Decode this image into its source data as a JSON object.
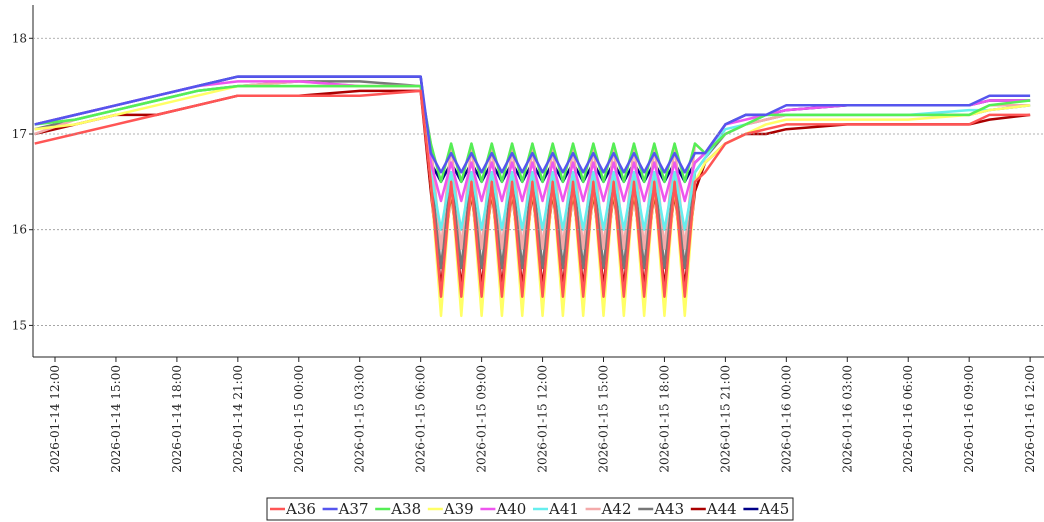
{
  "chart_data": {
    "type": "line",
    "x": [
      "2026-01-14 11:00",
      "2026-01-14 13:00",
      "2026-01-14 15:00",
      "2026-01-14 17:00",
      "2026-01-14 19:00",
      "2026-01-14 21:00",
      "2026-01-15 00:00",
      "2026-01-15 03:00",
      "2026-01-15 06:00",
      "2026-01-15 06:30",
      "2026-01-15 07:00",
      "2026-01-15 07:30",
      "2026-01-15 08:00",
      "2026-01-15 08:30",
      "2026-01-15 09:00",
      "2026-01-15 09:30",
      "2026-01-15 10:00",
      "2026-01-15 10:30",
      "2026-01-15 11:00",
      "2026-01-15 11:30",
      "2026-01-15 12:00",
      "2026-01-15 12:30",
      "2026-01-15 13:00",
      "2026-01-15 13:30",
      "2026-01-15 14:00",
      "2026-01-15 14:30",
      "2026-01-15 15:00",
      "2026-01-15 15:30",
      "2026-01-15 16:00",
      "2026-01-15 16:30",
      "2026-01-15 17:00",
      "2026-01-15 17:30",
      "2026-01-15 18:00",
      "2026-01-15 18:30",
      "2026-01-15 19:00",
      "2026-01-15 19:30",
      "2026-01-15 20:00",
      "2026-01-15 21:00",
      "2026-01-15 22:00",
      "2026-01-15 23:00",
      "2026-01-16 00:00",
      "2026-01-16 03:00",
      "2026-01-16 06:00",
      "2026-01-16 09:00",
      "2026-01-16 10:00",
      "2026-01-16 12:00"
    ],
    "series": [
      {
        "name": "A36",
        "color": "#ff5555",
        "values": [
          16.9,
          17.0,
          17.1,
          17.2,
          17.3,
          17.4,
          17.4,
          17.4,
          17.45,
          16.5,
          15.3,
          16.5,
          15.3,
          16.5,
          15.3,
          16.5,
          15.3,
          16.5,
          15.3,
          16.5,
          15.3,
          16.5,
          15.3,
          16.5,
          15.3,
          16.5,
          15.3,
          16.5,
          15.3,
          16.5,
          15.3,
          16.5,
          15.3,
          16.5,
          15.3,
          16.5,
          16.6,
          16.9,
          17.0,
          17.05,
          17.1,
          17.1,
          17.1,
          17.1,
          17.2,
          17.2
        ]
      },
      {
        "name": "A37",
        "color": "#5555ee",
        "values": [
          17.1,
          17.2,
          17.3,
          17.4,
          17.5,
          17.6,
          17.6,
          17.6,
          17.6,
          16.8,
          16.6,
          16.8,
          16.6,
          16.8,
          16.6,
          16.8,
          16.6,
          16.8,
          16.6,
          16.8,
          16.6,
          16.8,
          16.6,
          16.8,
          16.6,
          16.8,
          16.6,
          16.8,
          16.6,
          16.8,
          16.6,
          16.8,
          16.6,
          16.8,
          16.6,
          16.8,
          16.8,
          17.1,
          17.2,
          17.2,
          17.3,
          17.3,
          17.3,
          17.3,
          17.4,
          17.4
        ]
      },
      {
        "name": "A38",
        "color": "#55ee55",
        "values": [
          17.1,
          17.15,
          17.25,
          17.35,
          17.45,
          17.5,
          17.5,
          17.5,
          17.5,
          16.9,
          16.5,
          16.9,
          16.5,
          16.9,
          16.5,
          16.9,
          16.5,
          16.9,
          16.5,
          16.9,
          16.5,
          16.9,
          16.5,
          16.9,
          16.5,
          16.9,
          16.5,
          16.9,
          16.5,
          16.9,
          16.5,
          16.9,
          16.5,
          16.9,
          16.5,
          16.9,
          16.8,
          17.0,
          17.1,
          17.2,
          17.2,
          17.2,
          17.2,
          17.2,
          17.3,
          17.35
        ]
      },
      {
        "name": "A39",
        "color": "#ffff66",
        "values": [
          17.05,
          17.1,
          17.2,
          17.3,
          17.4,
          17.5,
          17.5,
          17.5,
          17.5,
          16.5,
          15.1,
          16.5,
          15.1,
          16.5,
          15.1,
          16.5,
          15.1,
          16.5,
          15.1,
          16.5,
          15.1,
          16.5,
          15.1,
          16.5,
          15.1,
          16.5,
          15.1,
          16.5,
          15.1,
          16.5,
          15.1,
          16.5,
          15.1,
          16.5,
          15.1,
          16.5,
          16.7,
          16.9,
          17.0,
          17.1,
          17.15,
          17.15,
          17.15,
          17.2,
          17.25,
          17.3
        ]
      },
      {
        "name": "A40",
        "color": "#ee55ee",
        "values": [
          17.1,
          17.2,
          17.3,
          17.4,
          17.5,
          17.55,
          17.55,
          17.5,
          17.5,
          16.7,
          16.3,
          16.7,
          16.3,
          16.7,
          16.3,
          16.7,
          16.3,
          16.7,
          16.3,
          16.7,
          16.3,
          16.7,
          16.3,
          16.7,
          16.3,
          16.7,
          16.3,
          16.7,
          16.3,
          16.7,
          16.3,
          16.7,
          16.3,
          16.7,
          16.3,
          16.7,
          16.8,
          17.1,
          17.15,
          17.2,
          17.25,
          17.3,
          17.3,
          17.3,
          17.35,
          17.35
        ]
      },
      {
        "name": "A41",
        "color": "#66eeee",
        "values": [
          17.1,
          17.15,
          17.25,
          17.35,
          17.45,
          17.5,
          17.5,
          17.5,
          17.5,
          16.6,
          16.0,
          16.6,
          16.0,
          16.6,
          16.0,
          16.6,
          16.0,
          16.6,
          16.0,
          16.6,
          16.0,
          16.6,
          16.0,
          16.6,
          16.0,
          16.6,
          16.0,
          16.6,
          16.0,
          16.6,
          16.0,
          16.6,
          16.0,
          16.6,
          16.0,
          16.6,
          16.75,
          17.05,
          17.1,
          17.2,
          17.2,
          17.2,
          17.2,
          17.25,
          17.25,
          17.3
        ]
      },
      {
        "name": "A42",
        "color": "#f4aaaa",
        "values": [
          17.0,
          17.15,
          17.25,
          17.35,
          17.45,
          17.5,
          17.55,
          17.5,
          17.5,
          16.9,
          15.8,
          16.9,
          15.8,
          16.9,
          15.8,
          16.9,
          15.8,
          16.9,
          15.8,
          16.9,
          15.8,
          16.9,
          15.8,
          16.9,
          15.8,
          16.9,
          15.8,
          16.9,
          15.8,
          16.9,
          15.8,
          16.9,
          15.8,
          16.9,
          15.8,
          16.9,
          16.8,
          17.0,
          17.1,
          17.15,
          17.2,
          17.2,
          17.2,
          17.2,
          17.3,
          17.3
        ]
      },
      {
        "name": "A43",
        "color": "#777777",
        "values": [
          17.05,
          17.15,
          17.25,
          17.35,
          17.45,
          17.5,
          17.55,
          17.55,
          17.5,
          16.6,
          15.6,
          16.6,
          15.6,
          16.6,
          15.6,
          16.6,
          15.6,
          16.6,
          15.6,
          16.6,
          15.6,
          16.6,
          15.6,
          16.6,
          15.6,
          16.6,
          15.6,
          16.6,
          15.6,
          16.6,
          15.6,
          16.6,
          15.6,
          16.6,
          15.6,
          16.6,
          16.75,
          17.0,
          17.1,
          17.15,
          17.2,
          17.2,
          17.2,
          17.2,
          17.25,
          17.3
        ]
      },
      {
        "name": "A44",
        "color": "#aa0000",
        "values": [
          17.0,
          17.1,
          17.2,
          17.2,
          17.3,
          17.4,
          17.4,
          17.45,
          17.45,
          16.4,
          15.4,
          16.4,
          15.4,
          16.4,
          15.4,
          16.4,
          15.4,
          16.4,
          15.4,
          16.4,
          15.4,
          16.4,
          15.4,
          16.4,
          15.4,
          16.4,
          15.4,
          16.4,
          15.4,
          16.4,
          15.4,
          16.4,
          15.4,
          16.4,
          15.4,
          16.4,
          16.7,
          16.9,
          17.0,
          17.0,
          17.05,
          17.1,
          17.1,
          17.1,
          17.15,
          17.2
        ]
      },
      {
        "name": "A45",
        "color": "#000088",
        "values": [
          17.1,
          17.2,
          17.3,
          17.4,
          17.5,
          17.6,
          17.6,
          17.6,
          17.6,
          16.7,
          16.5,
          16.7,
          16.5,
          16.7,
          16.5,
          16.7,
          16.5,
          16.7,
          16.5,
          16.7,
          16.5,
          16.7,
          16.5,
          16.7,
          16.5,
          16.7,
          16.5,
          16.7,
          16.5,
          16.7,
          16.5,
          16.7,
          16.5,
          16.7,
          16.5,
          16.7,
          16.8,
          17.1,
          17.2,
          17.2,
          17.25,
          17.3,
          17.3,
          17.3,
          17.35,
          17.35
        ]
      }
    ],
    "xlim": [
      "2026-01-14 10:55",
      "2026-01-16 12:41"
    ],
    "xticks": [
      "2026-01-14 12:00",
      "2026-01-14 15:00",
      "2026-01-14 18:00",
      "2026-01-14 21:00",
      "2026-01-15 00:00",
      "2026-01-15 03:00",
      "2026-01-15 06:00",
      "2026-01-15 09:00",
      "2026-01-15 12:00",
      "2026-01-15 15:00",
      "2026-01-15 18:00",
      "2026-01-15 21:00",
      "2026-01-16 00:00",
      "2026-01-16 03:00",
      "2026-01-16 06:00",
      "2026-01-16 09:00",
      "2026-01-16 12:00"
    ],
    "ylim": [
      14.67,
      18.4
    ],
    "yticks": [
      15,
      16,
      17,
      18
    ],
    "grid": true,
    "legend": "bottom"
  }
}
